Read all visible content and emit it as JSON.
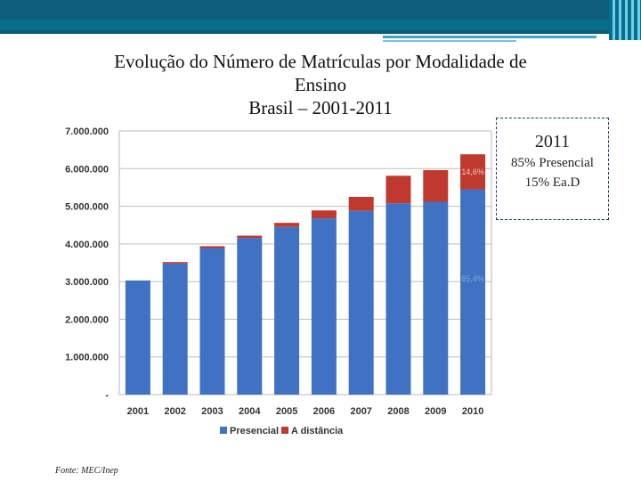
{
  "slide": {
    "title_line1": "Evolução do Número de Matrículas por Modalidade de",
    "title_line2": "Ensino",
    "title_line3": "Brasil – 2001-2011",
    "source": "Fonte: MEC/Inep"
  },
  "infobox": {
    "year": "2011",
    "line1": "85% Presencial",
    "line2": "15% Ea.D"
  },
  "colors": {
    "presencial": "#3f72c2",
    "distancia": "#c0392f",
    "label_presencial": "#7fa6e0",
    "label_distancia": "#f0c8c4"
  },
  "chart_data": {
    "type": "bar",
    "stacked": true,
    "categories": [
      "2001",
      "2002",
      "2003",
      "2004",
      "2005",
      "2006",
      "2007",
      "2008",
      "2009",
      "2010"
    ],
    "series": [
      {
        "name": "Presencial",
        "values": [
          3030000,
          3480000,
          3890000,
          4160000,
          4450000,
          4680000,
          4880000,
          5080000,
          5120000,
          5450000
        ]
      },
      {
        "name": "A distância",
        "values": [
          0,
          40000,
          50000,
          60000,
          110000,
          210000,
          370000,
          730000,
          840000,
          930000
        ]
      }
    ],
    "ylim": [
      0,
      7000000
    ],
    "yticks": [
      0,
      1000000,
      2000000,
      3000000,
      4000000,
      5000000,
      6000000,
      7000000
    ],
    "ytick_labels": [
      "-",
      "1.000.000",
      "2.000.000",
      "3.000.000",
      "4.000.000",
      "5.000.000",
      "6.000.000",
      "7.000.000"
    ],
    "annotations": [
      {
        "category": "2010",
        "series": "A distância",
        "text": "14,6%"
      },
      {
        "category": "2010",
        "series": "Presencial",
        "text": "85,4%"
      }
    ],
    "legend": {
      "position": "bottom",
      "entries": [
        "Presencial",
        "A distância"
      ]
    },
    "grid": true
  }
}
